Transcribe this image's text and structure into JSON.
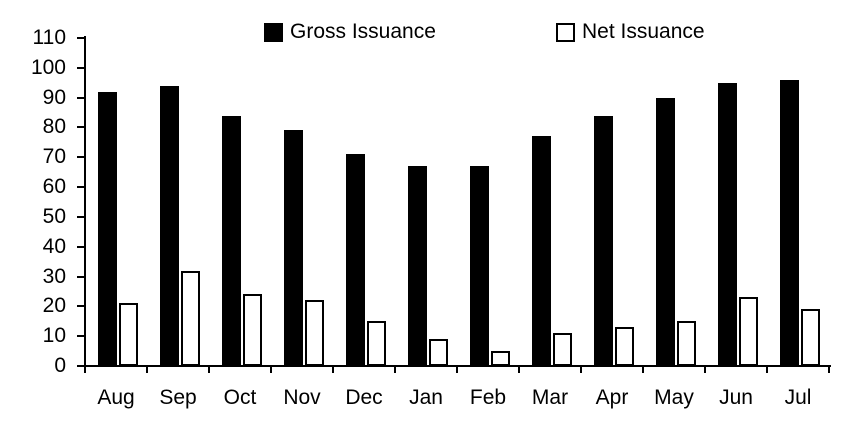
{
  "chart_data": {
    "type": "bar",
    "title": "",
    "xlabel": "",
    "ylabel": "",
    "categories": [
      "Aug",
      "Sep",
      "Oct",
      "Nov",
      "Dec",
      "Jan",
      "Feb",
      "Mar",
      "Apr",
      "May",
      "Jun",
      "Jul"
    ],
    "series": [
      {
        "name": "Gross Issuance",
        "values": [
          92,
          94,
          84,
          79,
          71,
          67,
          67,
          77,
          84,
          90,
          95,
          96
        ],
        "fill": "#000000",
        "border": "#000000"
      },
      {
        "name": "Net Issuance",
        "values": [
          21,
          32,
          24,
          22,
          15,
          9,
          5,
          11,
          13,
          15,
          23,
          19
        ],
        "fill": "#ffffff",
        "border": "#000000"
      }
    ],
    "ylim": [
      0,
      110
    ],
    "ytick_step": 10,
    "ytick_labels": [
      "0",
      "10",
      "20",
      "30",
      "40",
      "50",
      "60",
      "70",
      "80",
      "90",
      "100",
      "110"
    ],
    "grid": false,
    "legend_position": "top",
    "colors": {
      "gross": "#000000",
      "net_fill": "#ffffff",
      "net_border": "#000000",
      "axis": "#000000",
      "background": "#ffffff"
    }
  }
}
